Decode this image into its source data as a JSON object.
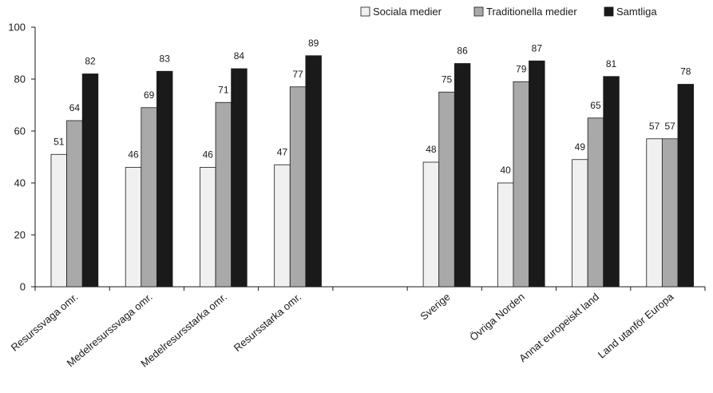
{
  "chart_data": {
    "type": "bar",
    "title": "",
    "xlabel": "",
    "ylabel": "",
    "ylim": [
      0,
      100
    ],
    "yticks": [
      0,
      20,
      40,
      60,
      80,
      100
    ],
    "grid": false,
    "legend_position": "top-right",
    "categories": [
      "Resurssvaga omr.",
      "Medelresurssvaga omr.",
      "Medelresursstarka omr.",
      "Resursstarka omr.",
      "",
      "Sverige",
      "Övriga Norden",
      "Annat europeiskt land",
      "Land utanför Europa"
    ],
    "series": [
      {
        "name": "Sociala medier",
        "color": "#f0f0f0",
        "values": [
          51,
          46,
          46,
          47,
          null,
          48,
          40,
          49,
          57
        ]
      },
      {
        "name": "Traditionella medier",
        "color": "#a9a9a9",
        "values": [
          64,
          69,
          71,
          77,
          null,
          75,
          79,
          65,
          57
        ]
      },
      {
        "name": "Samtliga",
        "color": "#1a1a1a",
        "values": [
          82,
          83,
          84,
          89,
          null,
          86,
          87,
          81,
          78
        ]
      }
    ]
  }
}
